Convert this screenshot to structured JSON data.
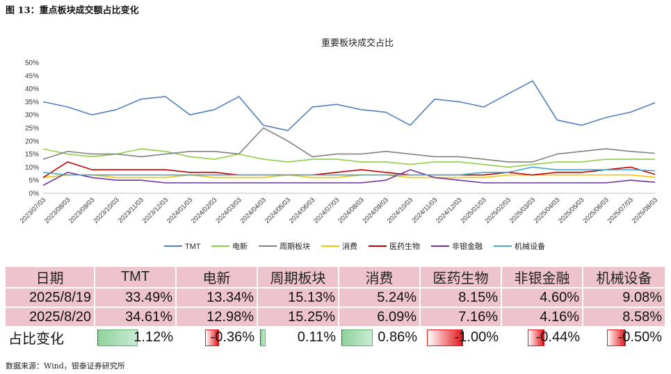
{
  "header": "图 13：重点板块成交额占比变化",
  "source": "数据来源：Wind，银泰证券研究所",
  "colors": {
    "TMT": "#4f7fbf",
    "电新": "#8ecf4a",
    "周期板块": "#808080",
    "消费": "#f7c300",
    "医药生物": "#c00000",
    "非银金融": "#7030a0",
    "机械设备": "#4aa6c2",
    "pink": "#eec4cc",
    "pos_bar": "#8fd19e",
    "neg_bar": "#e4171b"
  },
  "chart_data": {
    "type": "line",
    "title": "重要板块成交占比",
    "ylim": [
      0,
      50
    ],
    "yticks": [
      "0%",
      "5%",
      "10%",
      "15%",
      "20%",
      "25%",
      "30%",
      "35%",
      "40%",
      "45%",
      "50%"
    ],
    "grid": false,
    "legend_position": "bottom",
    "x_labels": [
      "2023/07/03",
      "2023/08/03",
      "2023/09/03",
      "2023/10/03",
      "2023/11/03",
      "2023/12/03",
      "2024/01/03",
      "2024/02/03",
      "2024/03/03",
      "2024/04/03",
      "2024/05/03",
      "2024/06/03",
      "2024/07/03",
      "2024/08/03",
      "2024/09/03",
      "2024/10/03",
      "2024/11/03",
      "2024/12/03",
      "2025/01/03",
      "2025/02/03",
      "2025/03/03",
      "2025/04/03",
      "2025/05/03",
      "2025/06/03",
      "2025/07/03",
      "2025/08/03"
    ],
    "series": [
      {
        "name": "TMT",
        "values": [
          35,
          33,
          30,
          32,
          36,
          37,
          30,
          32,
          37,
          26,
          24,
          33,
          34,
          32,
          31,
          26,
          36,
          35,
          33,
          38,
          43,
          28,
          26,
          29,
          31,
          34.6
        ]
      },
      {
        "name": "电新",
        "values": [
          17,
          15,
          14,
          15,
          17,
          16,
          14,
          13,
          15,
          13,
          12,
          13,
          13,
          12,
          12,
          11,
          12,
          12,
          11,
          10,
          11,
          12,
          12,
          13,
          13,
          13.0
        ]
      },
      {
        "name": "周期板块",
        "values": [
          13,
          16,
          15,
          15,
          14,
          15,
          16,
          16,
          15,
          25,
          20,
          14,
          15,
          15,
          16,
          15,
          14,
          14,
          13,
          12,
          12,
          15,
          16,
          17,
          16,
          15.3
        ]
      },
      {
        "name": "消费",
        "values": [
          6,
          7,
          7,
          6,
          6,
          6,
          7,
          6,
          6,
          6,
          7,
          6,
          6,
          7,
          7,
          6,
          6,
          6,
          6,
          7,
          7,
          7,
          7,
          7,
          7,
          6.1
        ]
      },
      {
        "name": "医药生物",
        "values": [
          6,
          12,
          9,
          9,
          9,
          9,
          8,
          8,
          7,
          7,
          7,
          7,
          8,
          9,
          8,
          7,
          7,
          7,
          7,
          8,
          7,
          8,
          8,
          9,
          10,
          7.2
        ]
      },
      {
        "name": "非银金融",
        "values": [
          3,
          8,
          6,
          5,
          5,
          4,
          4,
          4,
          4,
          4,
          4,
          4,
          4,
          4,
          5,
          9,
          6,
          5,
          4,
          4,
          4,
          4,
          4,
          4,
          5,
          4.2
        ]
      },
      {
        "name": "机械设备",
        "values": [
          8,
          7,
          7,
          7,
          7,
          7,
          7,
          7,
          7,
          7,
          7,
          7,
          7,
          7,
          7,
          7,
          7,
          7,
          8,
          8,
          10,
          9,
          9,
          9,
          9,
          8.6
        ]
      }
    ]
  },
  "table": {
    "headers": [
      "日期",
      "TMT",
      "电新",
      "周期板块",
      "消费",
      "医药生物",
      "非银金融",
      "机械设备"
    ],
    "rows": [
      {
        "date": "2025/8/19",
        "values": [
          "33.49%",
          "13.34%",
          "15.13%",
          "5.24%",
          "8.15%",
          "4.60%",
          "9.08%"
        ]
      },
      {
        "date": "2025/8/20",
        "values": [
          "34.61%",
          "12.98%",
          "15.25%",
          "6.09%",
          "7.16%",
          "4.16%",
          "8.58%"
        ]
      }
    ],
    "change_label": "占比变化",
    "changes": [
      {
        "text": "1.12%",
        "value": 1.12
      },
      {
        "text": "-0.36%",
        "value": -0.36
      },
      {
        "text": "0.11%",
        "value": 0.11
      },
      {
        "text": "0.86%",
        "value": 0.86
      },
      {
        "text": "-1.00%",
        "value": -1.0
      },
      {
        "text": "-0.44%",
        "value": -0.44
      },
      {
        "text": "-0.50%",
        "value": -0.5
      }
    ]
  }
}
